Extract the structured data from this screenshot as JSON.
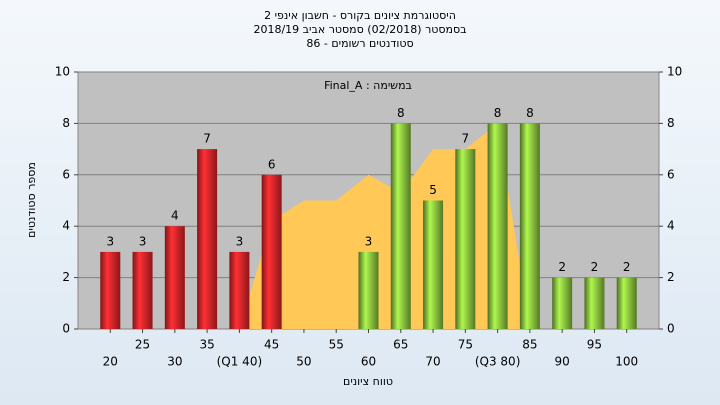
{
  "chart_data": {
    "type": "bar",
    "title": [
      "היסטוגרמת ציונים בקורס - חשבון אינפי 2",
      "בסמסטר  (02/2018)  סמסטר אביב 2018/19",
      "סטודנטים רשומים - 86"
    ],
    "annotation": "Final_A : במשימה",
    "x_label": "טווח ציונים",
    "y_label": "מספר סטודנטים",
    "categories": [
      "20",
      "25",
      "30",
      "35",
      "(Q1 40)",
      "45",
      "50",
      "55",
      "60",
      "65",
      "70",
      "75",
      "(Q3 80)",
      "85",
      "90",
      "95",
      "100"
    ],
    "values": [
      3,
      3,
      4,
      7,
      3,
      6,
      null,
      null,
      3,
      8,
      5,
      7,
      8,
      8,
      2,
      2,
      2
    ],
    "bar_colors": [
      "#e8262a",
      "#e8262a",
      "#e8262a",
      "#e8262a",
      "#e8262a",
      "#e8262a",
      null,
      null,
      "#8cc63f",
      "#8cc63f",
      "#8cc63f",
      "#8cc63f",
      "#8cc63f",
      "#8cc63f",
      "#8cc63f",
      "#8cc63f",
      "#8cc63f"
    ],
    "area": {
      "color": "#ffc857",
      "values": [
        null,
        null,
        null,
        null,
        0,
        4.2,
        5,
        5,
        6,
        5.3,
        7,
        7,
        8,
        0,
        null,
        null,
        null
      ]
    },
    "ylim": [
      0,
      10
    ],
    "yticks": [
      0,
      2,
      4,
      6,
      8,
      10
    ],
    "y2lim": [
      0,
      10
    ],
    "y2ticks": [
      0,
      2,
      4,
      6,
      8,
      10
    ],
    "grid": true
  }
}
